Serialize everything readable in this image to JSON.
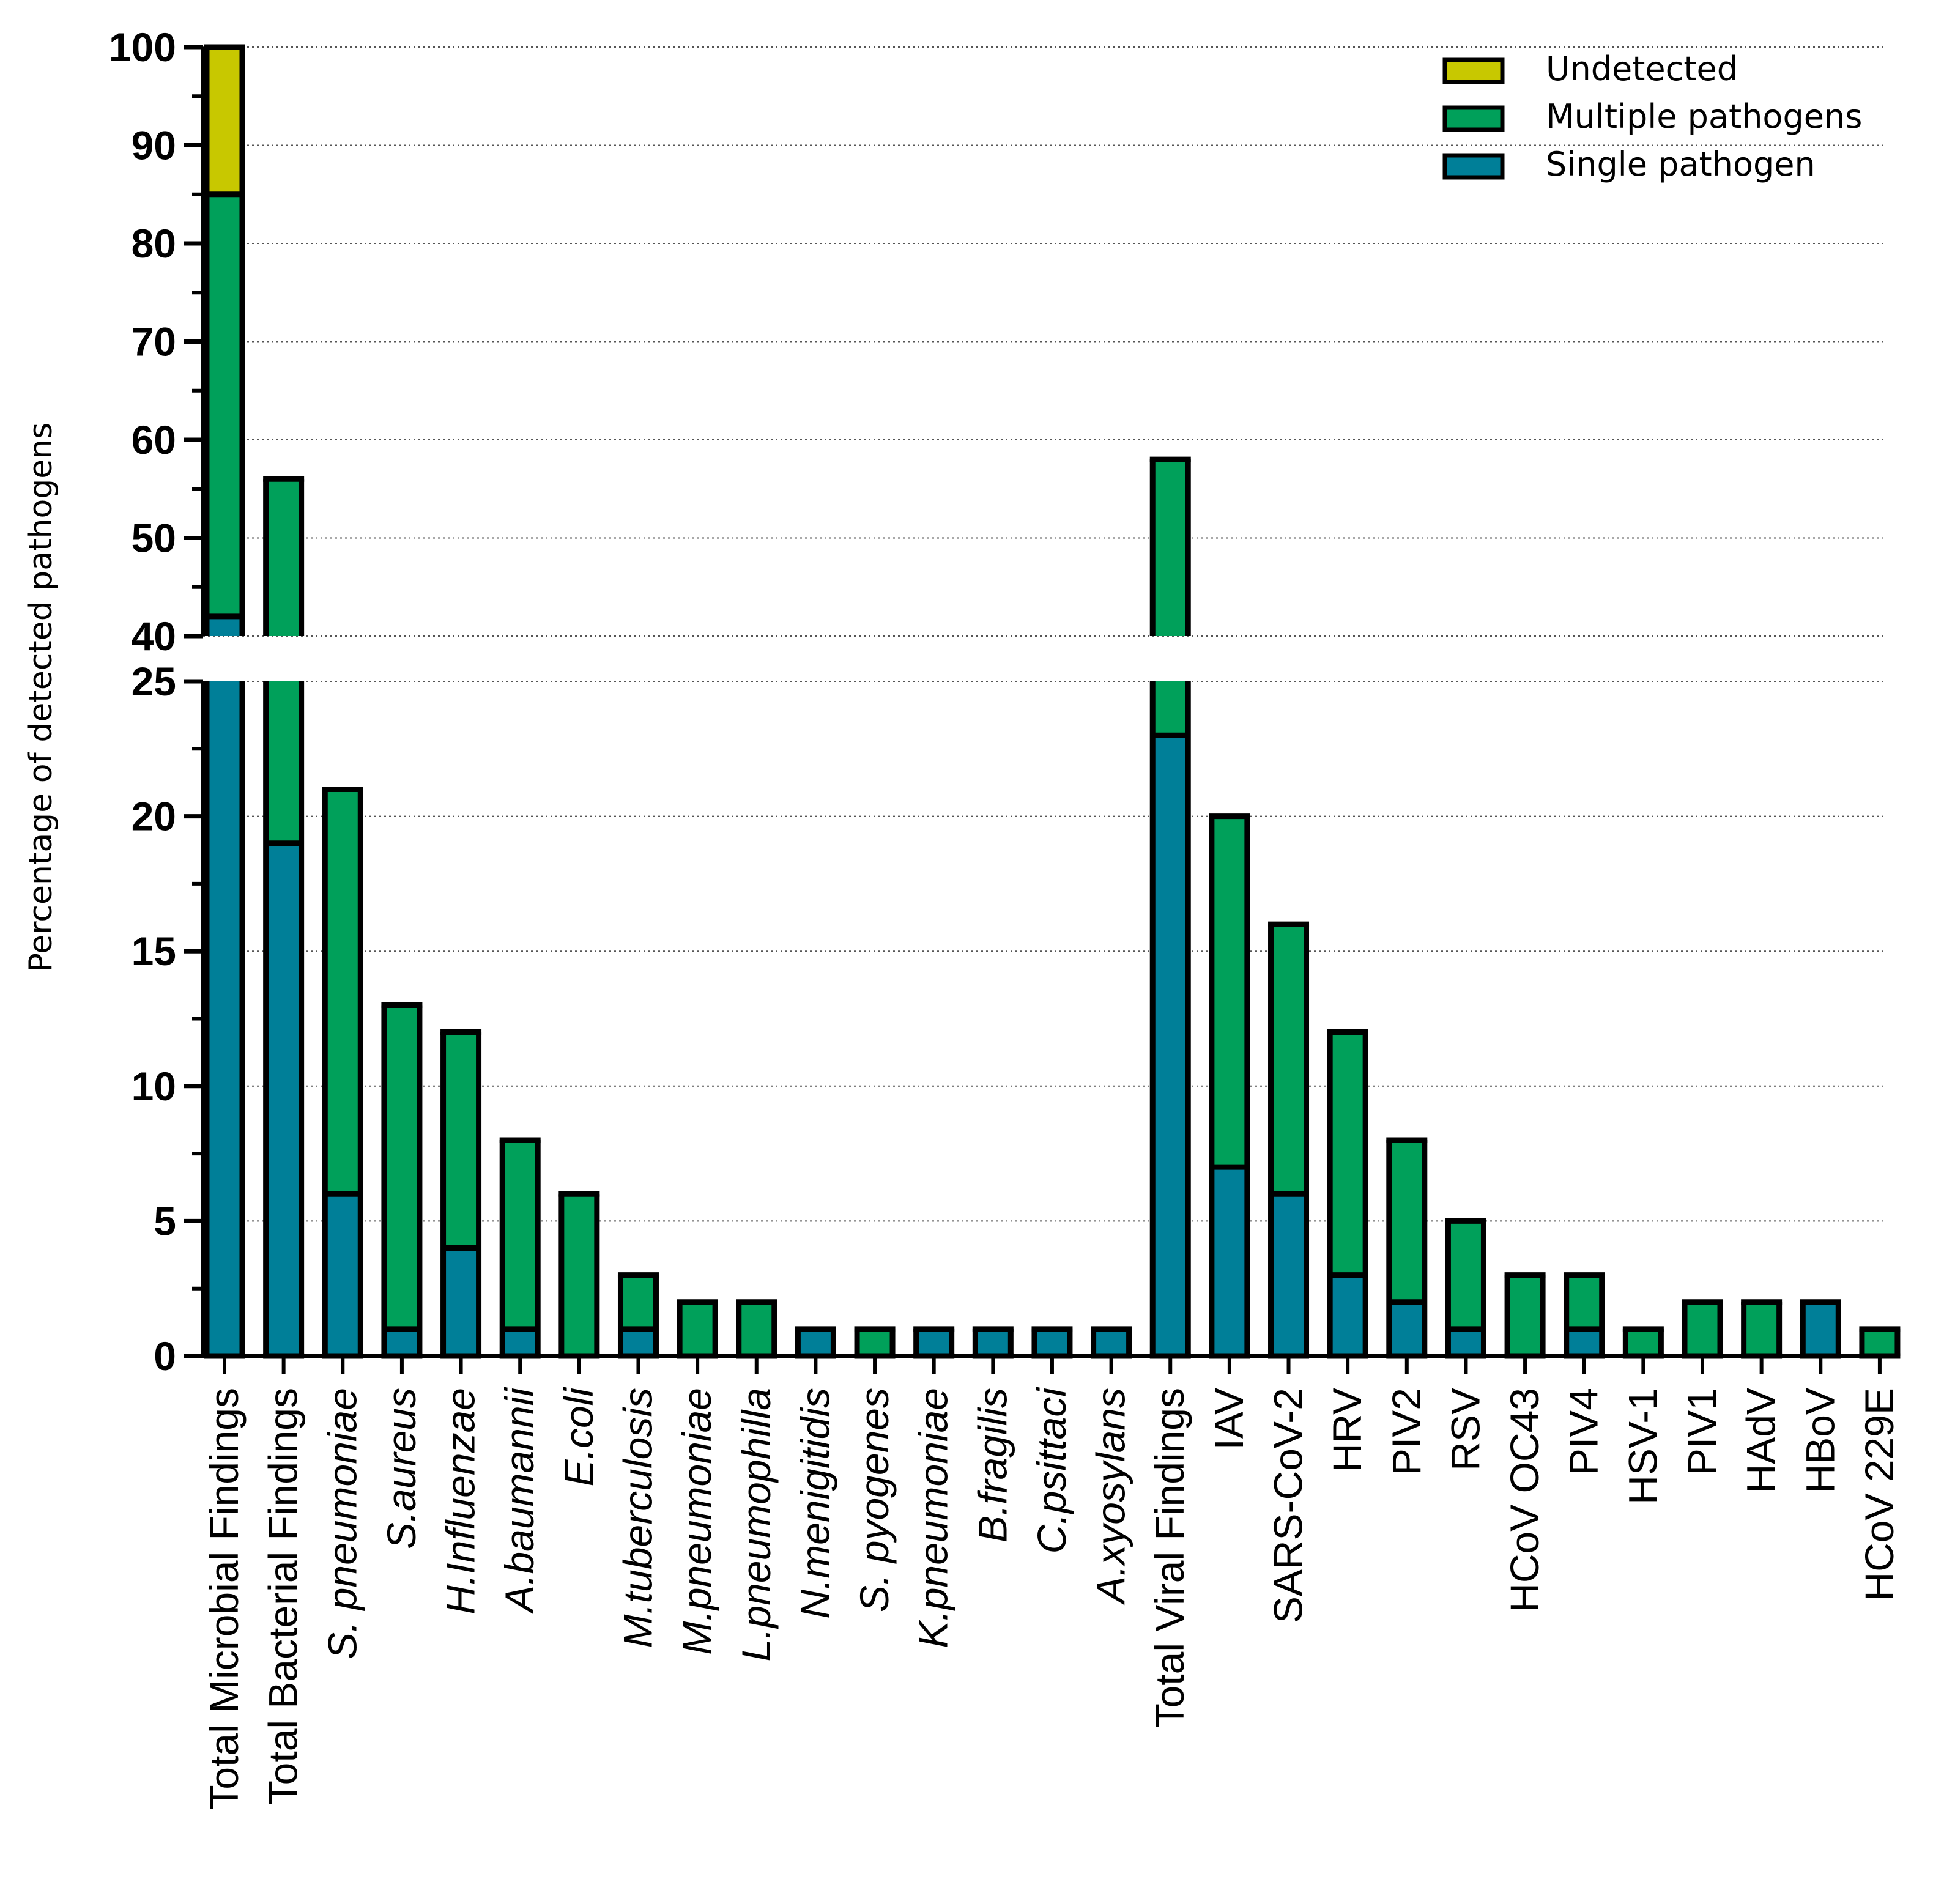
{
  "chart_data": {
    "type": "bar",
    "stacked": true,
    "title": "",
    "xlabel": "",
    "ylabel": "Percentage of detected pathogens",
    "y_axis_break": [
      25,
      40
    ],
    "ylim": [
      0,
      100
    ],
    "yticks_lower": [
      0,
      5,
      10,
      15,
      20,
      25
    ],
    "yticks_upper": [
      40,
      50,
      60,
      70,
      80,
      90,
      100
    ],
    "grid": "horizontal dotted",
    "legend_position": "top-right",
    "categories": [
      "Total Microbial Findings",
      "Total Bacterial Findings",
      "S. pneumoniae",
      "S.aureus",
      "H.Influenzae",
      "A.baumannii",
      "E.coli",
      "M.tuberculosis",
      "M.pneumoniae",
      "L.pneumophilla",
      "N.menigitidis",
      "S. pyogenes",
      "K.pneumoniae",
      "B.fragilis",
      "C.psittaci",
      "A.xyosylans",
      "Total Viral Findings",
      "IAV",
      "SARS-CoV-2",
      "HRV",
      "PIV2",
      "RSV",
      "HCoV OC43",
      "PIV4",
      "HSV-1",
      "PIV1",
      "HAdV",
      "HBoV",
      "HCoV 229E"
    ],
    "italic_categories": [
      false,
      false,
      true,
      true,
      true,
      true,
      true,
      true,
      true,
      true,
      true,
      true,
      true,
      true,
      true,
      true,
      false,
      false,
      false,
      false,
      false,
      false,
      false,
      false,
      false,
      false,
      false,
      false,
      false
    ],
    "series": [
      {
        "name": "Single pathogen",
        "color": "#007f98",
        "values": [
          42,
          19,
          6,
          1,
          4,
          1,
          0,
          1,
          0,
          0,
          1,
          0,
          1,
          1,
          1,
          1,
          23,
          7,
          6,
          3,
          2,
          1,
          0,
          1,
          0,
          0,
          0,
          2,
          0
        ]
      },
      {
        "name": "Multiple pathogens",
        "color": "#00a05a",
        "values": [
          43,
          37,
          15,
          12,
          8,
          7,
          6,
          2,
          2,
          2,
          0,
          1,
          0,
          0,
          0,
          0,
          35,
          13,
          10,
          9,
          6,
          4,
          3,
          2,
          1,
          2,
          2,
          0,
          1
        ]
      },
      {
        "name": "Undetected",
        "color": "#c8c800",
        "values": [
          15,
          0,
          0,
          0,
          0,
          0,
          0,
          0,
          0,
          0,
          0,
          0,
          0,
          0,
          0,
          0,
          0,
          0,
          0,
          0,
          0,
          0,
          0,
          0,
          0,
          0,
          0,
          0,
          0
        ]
      }
    ],
    "legend": [
      "Undetected",
      "Multiple pathogens",
      "Single pathogen"
    ]
  }
}
